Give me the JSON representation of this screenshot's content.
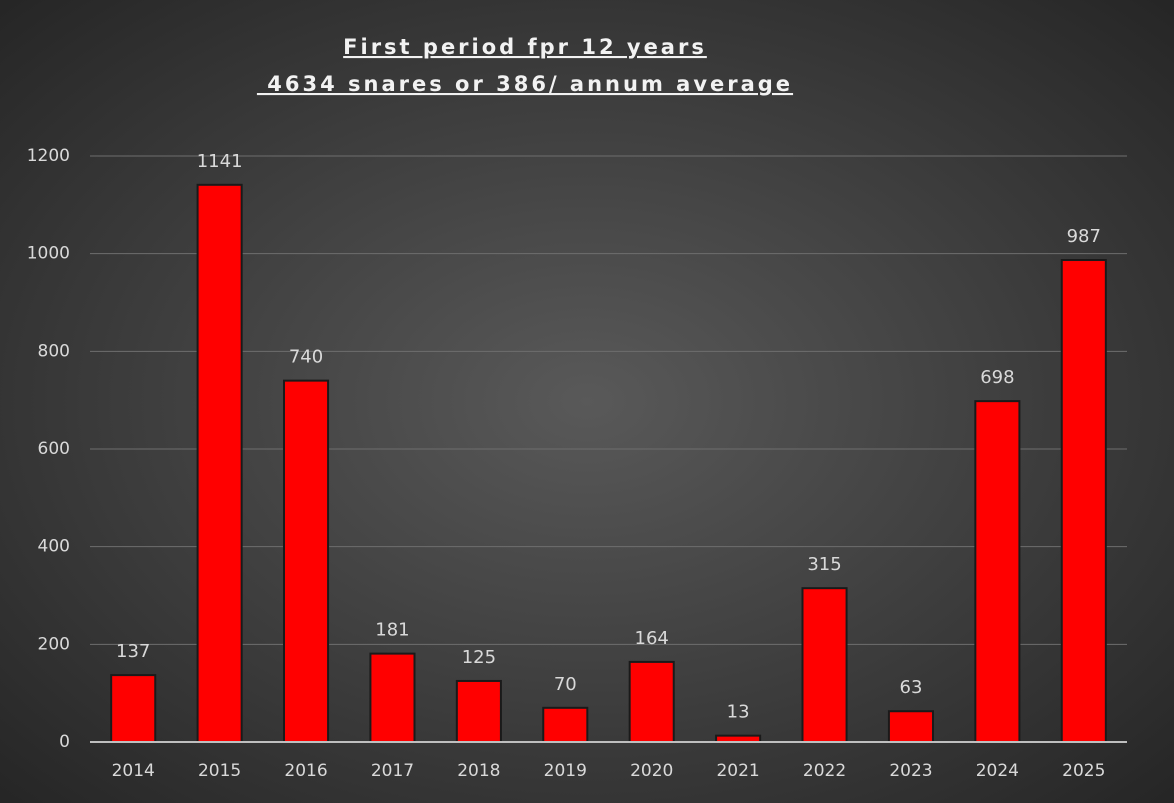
{
  "chart_data": {
    "type": "bar",
    "title": "First period fpr 12 years",
    "subtitle": " 4634 snares or 386/ annum average",
    "categories": [
      "2014",
      "2015",
      "2016",
      "2017",
      "2018",
      "2019",
      "2020",
      "2021",
      "2022",
      "2023",
      "2024",
      "2025"
    ],
    "values": [
      137,
      1141,
      740,
      181,
      125,
      70,
      164,
      13,
      315,
      63,
      698,
      987
    ],
    "color": "#ff0000",
    "ylim": [
      0,
      1200
    ],
    "yticks": [
      0,
      200,
      400,
      600,
      800,
      1000,
      1200
    ],
    "grid": true
  }
}
